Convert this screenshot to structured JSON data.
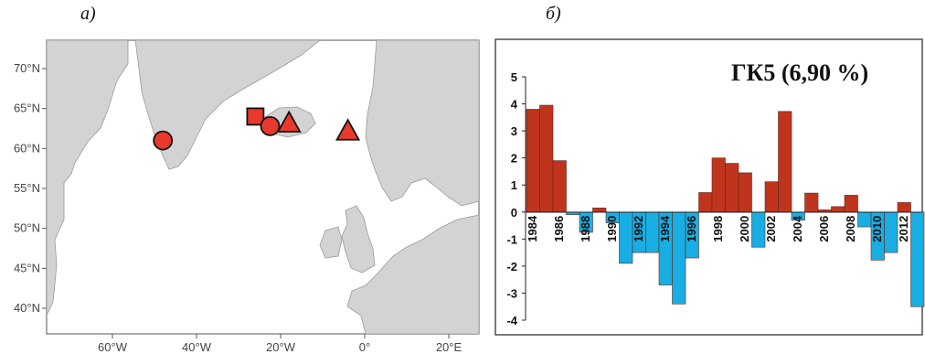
{
  "panel_labels": {
    "a": "а)",
    "b": "б)"
  },
  "map": {
    "lat_labels": [
      "70°N",
      "65°N",
      "60°N",
      "55°N",
      "50°N",
      "45°N",
      "40°N"
    ],
    "lon_labels": [
      "60°W",
      "40°W",
      "20°W",
      "0°",
      "20°E"
    ],
    "land_color": "#d3d3d3",
    "ocean_color": "#ffffff",
    "marker_color": "#e8392c",
    "markers": [
      {
        "shape": "circle",
        "lon": -48,
        "lat": 61.0
      },
      {
        "shape": "square",
        "lon": -26,
        "lat": 64.0
      },
      {
        "shape": "circle",
        "lon": -22.5,
        "lat": 62.8
      },
      {
        "shape": "triangle",
        "lon": -18,
        "lat": 63.2
      },
      {
        "shape": "triangle",
        "lon": -4,
        "lat": 62.2
      }
    ]
  },
  "chart_data": {
    "type": "bar",
    "title": "ГК5 (6,90 %)",
    "x": [
      1984,
      1985,
      1986,
      1987,
      1988,
      1989,
      1990,
      1991,
      1992,
      1993,
      1994,
      1995,
      1996,
      1997,
      1998,
      1999,
      2000,
      2001,
      2002,
      2003,
      2004,
      2005,
      2006,
      2007,
      2008,
      2009,
      2010,
      2011,
      2012,
      2013
    ],
    "values": [
      3.8,
      3.95,
      1.9,
      -0.1,
      -0.75,
      0.15,
      -0.4,
      -1.9,
      -1.5,
      -1.5,
      -2.7,
      -3.4,
      -1.7,
      0.72,
      2.0,
      1.8,
      1.45,
      -1.3,
      1.12,
      3.72,
      -0.3,
      0.7,
      0.08,
      0.2,
      0.62,
      -0.55,
      -1.78,
      -1.5,
      0.35,
      -3.5
    ],
    "tick_labels": [
      "1984",
      "1986",
      "1988",
      "1990",
      "1992",
      "1994",
      "1996",
      "1998",
      "2000",
      "2002",
      "2004",
      "2006",
      "2008",
      "2010",
      "2012"
    ],
    "y_ticks": [
      "5",
      "4",
      "3",
      "2",
      "1",
      "0",
      "-1",
      "-2",
      "-3",
      "-4"
    ],
    "ylim": [
      -4,
      5
    ],
    "positive_color": "#c0341d",
    "negative_color": "#19aee3"
  }
}
